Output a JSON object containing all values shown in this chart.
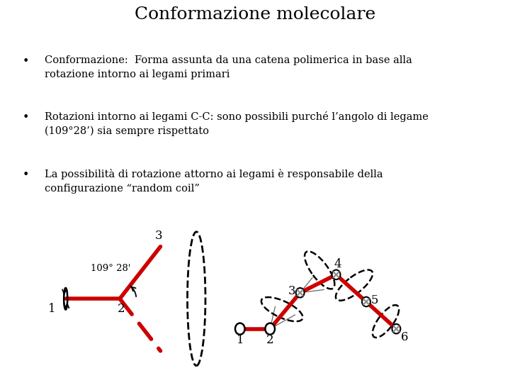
{
  "title": "Conformazione molecolare",
  "bullet1_label": "Conformazione:  Forma assunta da una catena polimerica in base alla rotazione intorno ai legami primari",
  "bullet2_label": "Rotazioni intorno ai legami C-C: sono possibili purché l’angolo di legame (109°28’) sia sempre rispettato",
  "bullet3_label": "La possibilità di rotazione attorno ai legami è responsabile della configurazione “random coil”",
  "bg_color": "#ffffff",
  "text_color": "#000000",
  "red_color": "#cc0000",
  "title_fontsize": 18,
  "body_fontsize": 10.5
}
